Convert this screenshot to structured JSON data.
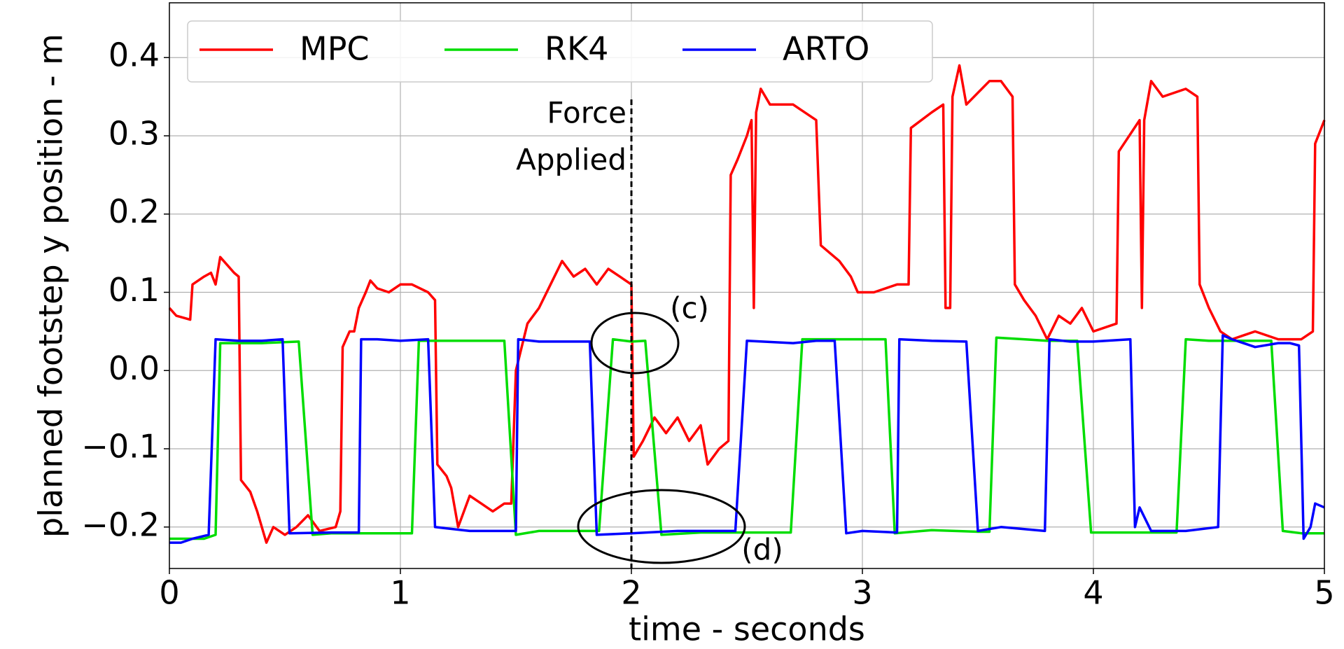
{
  "chart_data": {
    "type": "line",
    "xlabel": "time - seconds",
    "ylabel": "planned footstep y position - m",
    "xlim": [
      0,
      5
    ],
    "ylim": [
      -0.253,
      0.47
    ],
    "xticks": [
      0,
      1,
      2,
      3,
      4,
      5
    ],
    "yticks": [
      {
        "value": -0.2,
        "label": "−0.2"
      },
      {
        "value": -0.1,
        "label": "−0.1"
      },
      {
        "value": 0,
        "label": "0.0"
      },
      0.1,
      0.2,
      0.3,
      0.4
    ],
    "grid": true,
    "legend": "upper left",
    "vline_x": 2,
    "annotations": [
      "Force",
      "Applied",
      "(c)",
      "(d)"
    ],
    "series": [
      {
        "name": "MPC",
        "color": "#ff0000",
        "x": [
          0,
          0.03,
          0.09,
          0.1,
          0.15,
          0.18,
          0.2,
          0.22,
          0.28,
          0.3,
          0.31,
          0.35,
          0.38,
          0.42,
          0.45,
          0.5,
          0.55,
          0.6,
          0.65,
          0.72,
          0.73,
          0.74,
          0.75,
          0.78,
          0.8,
          0.82,
          0.85,
          0.87,
          0.9,
          0.95,
          1.0,
          1.05,
          1.12,
          1.15,
          1.16,
          1.2,
          1.22,
          1.25,
          1.3,
          1.35,
          1.4,
          1.45,
          1.48,
          1.5,
          1.55,
          1.6,
          1.65,
          1.7,
          1.75,
          1.8,
          1.85,
          1.9,
          1.95,
          2.0,
          2.01,
          2.05,
          2.1,
          2.15,
          2.2,
          2.25,
          2.3,
          2.33,
          2.38,
          2.42,
          2.43,
          2.46,
          2.5,
          2.52,
          2.53,
          2.54,
          2.56,
          2.6,
          2.7,
          2.8,
          2.82,
          2.9,
          2.95,
          2.98,
          3.05,
          3.15,
          3.2,
          3.21,
          3.3,
          3.35,
          3.36,
          3.38,
          3.39,
          3.42,
          3.45,
          3.55,
          3.6,
          3.65,
          3.66,
          3.7,
          3.75,
          3.8,
          3.85,
          3.9,
          3.95,
          4.0,
          4.1,
          4.11,
          4.2,
          4.21,
          4.22,
          4.25,
          4.3,
          4.4,
          4.45,
          4.46,
          4.5,
          4.55,
          4.6,
          4.7,
          4.8,
          4.9,
          4.95,
          4.96,
          5.0
        ],
        "values": [
          0.08,
          0.07,
          0.065,
          0.11,
          0.12,
          0.125,
          0.11,
          0.145,
          0.125,
          0.12,
          -0.14,
          -0.155,
          -0.18,
          -0.22,
          -0.2,
          -0.21,
          -0.2,
          -0.185,
          -0.205,
          -0.2,
          -0.19,
          -0.18,
          0.03,
          0.05,
          0.05,
          0.08,
          0.1,
          0.115,
          0.105,
          0.1,
          0.11,
          0.11,
          0.1,
          0.09,
          -0.12,
          -0.135,
          -0.15,
          -0.2,
          -0.16,
          -0.17,
          -0.18,
          -0.17,
          -0.17,
          0.0,
          0.06,
          0.08,
          0.11,
          0.14,
          0.12,
          0.13,
          0.11,
          0.13,
          0.12,
          0.11,
          -0.11,
          -0.09,
          -0.06,
          -0.08,
          -0.06,
          -0.09,
          -0.07,
          -0.12,
          -0.1,
          -0.09,
          0.25,
          0.27,
          0.3,
          0.32,
          0.08,
          0.33,
          0.36,
          0.34,
          0.34,
          0.32,
          0.16,
          0.14,
          0.12,
          0.1,
          0.1,
          0.11,
          0.11,
          0.31,
          0.33,
          0.34,
          0.08,
          0.08,
          0.35,
          0.39,
          0.34,
          0.37,
          0.37,
          0.35,
          0.11,
          0.09,
          0.07,
          0.04,
          0.07,
          0.06,
          0.08,
          0.05,
          0.06,
          0.28,
          0.32,
          0.08,
          0.32,
          0.37,
          0.35,
          0.36,
          0.35,
          0.11,
          0.08,
          0.05,
          0.04,
          0.05,
          0.04,
          0.04,
          0.05,
          0.29,
          0.32
        ]
      },
      {
        "name": "RK4",
        "color": "#00dd00",
        "x": [
          0,
          0.15,
          0.2,
          0.22,
          0.3,
          0.4,
          0.56,
          0.62,
          0.7,
          0.8,
          1.0,
          1.05,
          1.08,
          1.2,
          1.4,
          1.45,
          1.5,
          1.6,
          1.8,
          1.86,
          1.92,
          2.0,
          2.06,
          2.13,
          2.3,
          2.5,
          2.69,
          2.74,
          2.9,
          3.1,
          3.14,
          3.3,
          3.5,
          3.55,
          3.58,
          3.7,
          3.8,
          3.93,
          3.99,
          4.1,
          4.3,
          4.36,
          4.4,
          4.5,
          4.77,
          4.82,
          4.9,
          5.0
        ],
        "values": [
          -0.215,
          -0.215,
          -0.21,
          0.035,
          0.035,
          0.035,
          0.037,
          -0.21,
          -0.208,
          -0.208,
          -0.208,
          -0.208,
          0.038,
          0.038,
          0.038,
          0.038,
          -0.21,
          -0.205,
          -0.205,
          -0.205,
          0.04,
          0.037,
          0.038,
          -0.21,
          -0.207,
          -0.207,
          -0.207,
          0.04,
          0.04,
          0.04,
          -0.208,
          -0.204,
          -0.206,
          -0.206,
          0.042,
          0.04,
          0.038,
          0.038,
          -0.207,
          -0.207,
          -0.207,
          -0.207,
          0.04,
          0.038,
          0.038,
          -0.205,
          -0.208,
          -0.208
        ]
      },
      {
        "name": "ARTO",
        "color": "#0000ff",
        "x": [
          0,
          0.05,
          0.1,
          0.17,
          0.2,
          0.3,
          0.4,
          0.49,
          0.52,
          0.7,
          0.82,
          0.83,
          0.9,
          1.0,
          1.12,
          1.15,
          1.3,
          1.5,
          1.51,
          1.6,
          1.8,
          1.82,
          1.85,
          2.0,
          2.2,
          2.45,
          2.5,
          2.7,
          2.8,
          2.88,
          2.93,
          3.0,
          3.15,
          3.16,
          3.3,
          3.45,
          3.5,
          3.6,
          3.79,
          3.81,
          3.9,
          4.0,
          4.16,
          4.18,
          4.2,
          4.25,
          4.4,
          4.54,
          4.56,
          4.6,
          4.7,
          4.8,
          4.85,
          4.89,
          4.91,
          4.94,
          4.96,
          5.0
        ],
        "values": [
          -0.22,
          -0.22,
          -0.215,
          -0.21,
          0.04,
          0.038,
          0.038,
          0.04,
          -0.208,
          -0.207,
          -0.207,
          0.04,
          0.04,
          0.038,
          0.04,
          -0.2,
          -0.205,
          -0.205,
          0.04,
          0.037,
          0.037,
          0.037,
          -0.21,
          -0.208,
          -0.205,
          -0.205,
          0.038,
          0.035,
          0.038,
          0.038,
          -0.208,
          -0.205,
          -0.207,
          0.04,
          0.038,
          0.037,
          -0.205,
          -0.2,
          -0.205,
          0.04,
          0.037,
          0.037,
          0.04,
          -0.2,
          -0.175,
          -0.205,
          -0.205,
          -0.2,
          0.045,
          0.04,
          0.03,
          0.035,
          0.035,
          0.032,
          -0.215,
          -0.2,
          -0.17,
          -0.175
        ]
      }
    ]
  }
}
